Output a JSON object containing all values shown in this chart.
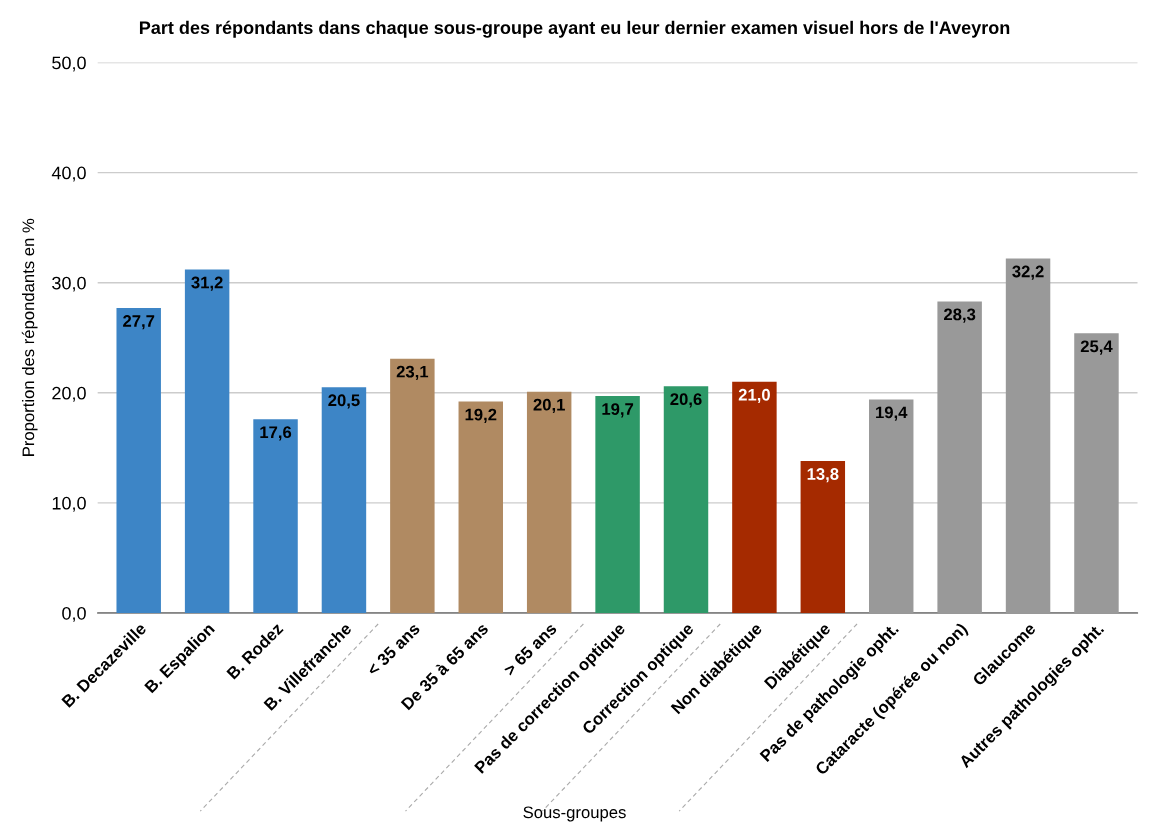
{
  "chart_data": {
    "type": "bar",
    "title": "Part des répondants dans chaque sous-groupe ayant eu leur dernier examen visuel hors de l'Aveyron",
    "xlabel": "Sous-groupes",
    "ylabel": "Proportion des répondants en %",
    "categories": [
      "B. Decazeville",
      "B. Espalion",
      "B. Rodez",
      "B. Villefranche",
      "< 35 ans",
      "De 35 à 65 ans",
      "> 65 ans",
      "Pas de correction optique",
      "Correction optique",
      "Non diabétique",
      "Diabétique",
      "Pas de pathologie opht.",
      "Cataracte (opérée ou non)",
      "Glaucome",
      "Autres pathologies opht."
    ],
    "values": [
      27.7,
      31.2,
      17.6,
      20.5,
      23.1,
      19.2,
      20.1,
      19.7,
      20.6,
      21.0,
      13.8,
      19.4,
      28.3,
      32.2,
      25.4
    ],
    "value_labels": [
      "27,7",
      "31,2",
      "17,6",
      "20,5",
      "23,1",
      "19,2",
      "20,1",
      "19,7",
      "20,6",
      "21,0",
      "13,8",
      "19,4",
      "28,3",
      "32,2",
      "25,4"
    ],
    "colors": [
      "#3d85c6",
      "#3d85c6",
      "#3d85c6",
      "#3d85c6",
      "#b08a62",
      "#b08a62",
      "#b08a62",
      "#2e9968",
      "#2e9968",
      "#a52a00",
      "#a52a00",
      "#999999",
      "#999999",
      "#999999",
      "#999999"
    ],
    "ylim": [
      0,
      50
    ],
    "yticks": [
      {
        "value": 0,
        "label": "0,0"
      },
      {
        "value": 10,
        "label": "10,0"
      },
      {
        "value": 20,
        "label": "20,0"
      },
      {
        "value": 30,
        "label": "30,0"
      },
      {
        "value": 40,
        "label": "40,0"
      },
      {
        "value": 50,
        "label": "50,0"
      }
    ],
    "grid": "y",
    "legend": false
  }
}
